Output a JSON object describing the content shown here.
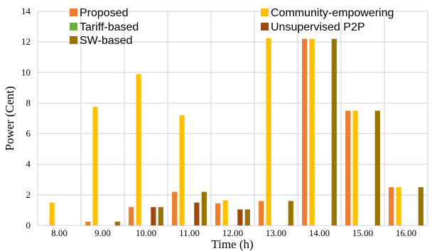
{
  "chart_data": {
    "type": "bar",
    "title": "",
    "xlabel": "Time (h)",
    "ylabel": "Power (Cent)",
    "ylim": [
      0,
      14
    ],
    "yticks": [
      0,
      2,
      4,
      6,
      8,
      10,
      12,
      14
    ],
    "grid": true,
    "legend_position": "top",
    "categories": [
      "8.00",
      "9.00",
      "10.00",
      "11.00",
      "12.00",
      "13.00",
      "14.00",
      "15.00",
      "16.00"
    ],
    "series": [
      {
        "name": "Proposed",
        "color": "#ED7D31",
        "values": [
          0,
          0.25,
          1.2,
          2.2,
          1.45,
          1.6,
          12.2,
          7.5,
          2.5
        ]
      },
      {
        "name": "Community-empowering",
        "color": "#FFC000",
        "values": [
          1.5,
          7.75,
          9.9,
          7.2,
          1.65,
          12.25,
          12.2,
          7.5,
          2.5
        ]
      },
      {
        "name": "Tariff-based",
        "color": "#70AD47",
        "values": [
          0,
          0,
          0,
          0,
          0,
          0,
          0,
          0,
          0
        ]
      },
      {
        "name": "Unsupervised P2P",
        "color": "#9E480E",
        "values": [
          0,
          0,
          1.2,
          1.5,
          1.05,
          0,
          0,
          0,
          0
        ]
      },
      {
        "name": "SW-based",
        "color": "#997300",
        "values": [
          0,
          0.25,
          1.2,
          2.2,
          1.05,
          1.6,
          12.2,
          7.5,
          2.5
        ]
      }
    ]
  }
}
